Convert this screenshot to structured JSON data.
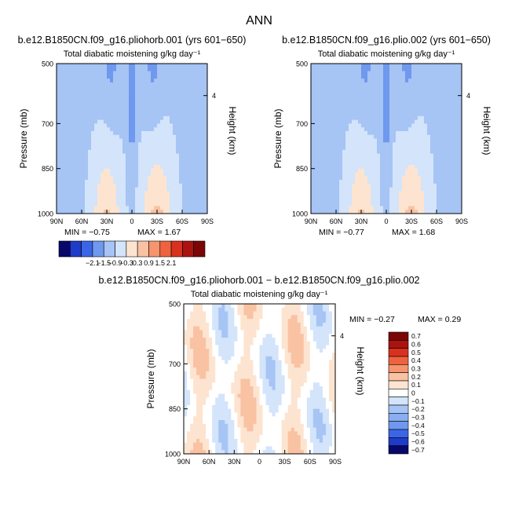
{
  "page_title": "ANN",
  "colorbar_top": {
    "levels": [
      -2.1,
      -1.5,
      -0.9,
      -0.3,
      0.3,
      0.9,
      1.5,
      2.1
    ],
    "labels": [
      "−2.1",
      "−1.5",
      "−0.9",
      "−0.3",
      "0.3",
      "0.9",
      "1.5",
      "2.1"
    ],
    "colors": [
      "#08086b",
      "#1e3cc8",
      "#3a66e6",
      "#6f98ef",
      "#a6c4f4",
      "#d3e4fb",
      "#fde4d0",
      "#f9c2a3",
      "#f6946d",
      "#ee6240",
      "#d8321e",
      "#aa1410",
      "#7a0606"
    ]
  },
  "colorbar_diff": {
    "levels": [
      0.7,
      0.6,
      0.5,
      0.4,
      0.3,
      0.2,
      0.1,
      0,
      -0.1,
      -0.2,
      -0.3,
      -0.4,
      -0.5,
      -0.6,
      -0.7
    ],
    "labels": [
      "0.7",
      "0.6",
      "0.5",
      "0.4",
      "0.3",
      "0.2",
      "0.1",
      "0",
      "−0.1",
      "−0.2",
      "−0.3",
      "−0.4",
      "−0.5",
      "−0.6",
      "−0.7"
    ],
    "colors": [
      "#7a0606",
      "#aa1410",
      "#d8321e",
      "#ee6240",
      "#f6946d",
      "#f9c2a3",
      "#fde4d0",
      "#ffffff",
      "#d3e4fb",
      "#a6c4f4",
      "#8aaef2",
      "#6f98ef",
      "#3a66e6",
      "#1e3cc8",
      "#08086b"
    ]
  },
  "chart_data": [
    {
      "type": "heatmap",
      "title": "b.e12.B1850CN.f09_g16.pliohorb.001 (yrs 601−650)",
      "subtitle": "Total diabatic moistening",
      "units": "g/kg day⁻¹",
      "ylabel": "Pressure (mb)",
      "y2label": "Height (km)",
      "x_ticks": [
        "90N",
        "60N",
        "30N",
        "0",
        "30S",
        "60S",
        "90S"
      ],
      "x_range": [
        90,
        -90
      ],
      "y_ticks": [
        500,
        700,
        850,
        1000
      ],
      "y_range": [
        500,
        1000
      ],
      "y2_ticks": [
        4
      ],
      "min_label": "MIN = −0.75",
      "max_label": "MAX = 1.67",
      "min": -0.75,
      "max": 1.67
    },
    {
      "type": "heatmap",
      "title": "b.e12.B1850CN.f09_g16.plio.002 (yrs 601−650)",
      "subtitle": "Total diabatic moistening",
      "units": "g/kg day⁻¹",
      "ylabel": "Pressure (mb)",
      "y2label": "Height (km)",
      "x_ticks": [
        "90N",
        "60N",
        "30N",
        "0",
        "30S",
        "60S",
        "90S"
      ],
      "x_range": [
        90,
        -90
      ],
      "y_ticks": [
        500,
        700,
        850,
        1000
      ],
      "y_range": [
        500,
        1000
      ],
      "y2_ticks": [
        4
      ],
      "min_label": "MIN = −0.77",
      "max_label": "MAX = 1.68",
      "min": -0.77,
      "max": 1.68
    },
    {
      "type": "heatmap",
      "title": "b.e12.B1850CN.f09_g16.pliohorb.001 − b.e12.B1850CN.f09_g16.plio.002",
      "subtitle": "Total diabatic moistening",
      "units": "g/kg day⁻¹",
      "ylabel": "Pressure (mb)",
      "y2label": "Height (km)",
      "x_ticks": [
        "90N",
        "60N",
        "30N",
        "0",
        "30S",
        "60S",
        "90S"
      ],
      "x_range": [
        90,
        -90
      ],
      "y_ticks": [
        500,
        700,
        850,
        1000
      ],
      "y_range": [
        500,
        1000
      ],
      "y2_ticks": [
        4
      ],
      "min_label": "MIN = −0.27",
      "max_label": "MAX = 0.29",
      "min": -0.27,
      "max": 0.29
    }
  ]
}
